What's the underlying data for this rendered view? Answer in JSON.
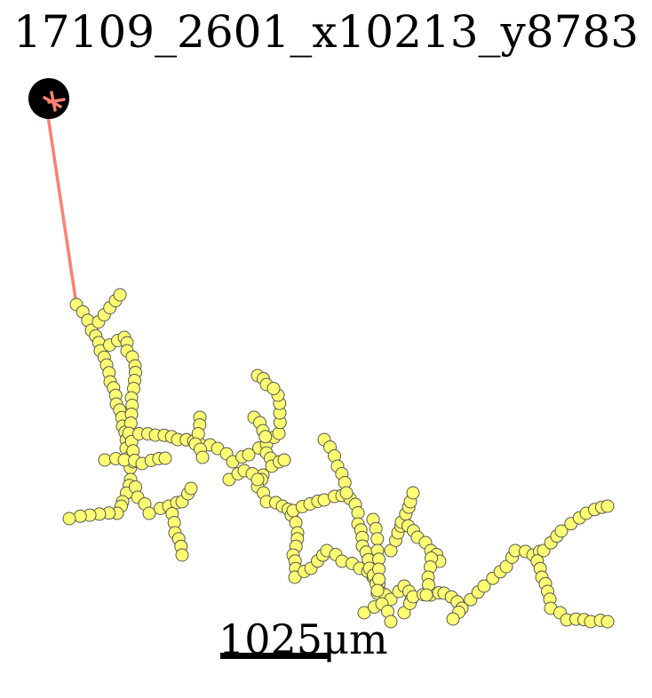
{
  "title": "17109_2601_x10213_y8783",
  "scale_bar": {
    "label": "1025μm"
  },
  "colors": {
    "track": "#fa8072",
    "node_fill": "#ffff73",
    "node_stroke": "#555555",
    "soma": "#000000"
  }
}
